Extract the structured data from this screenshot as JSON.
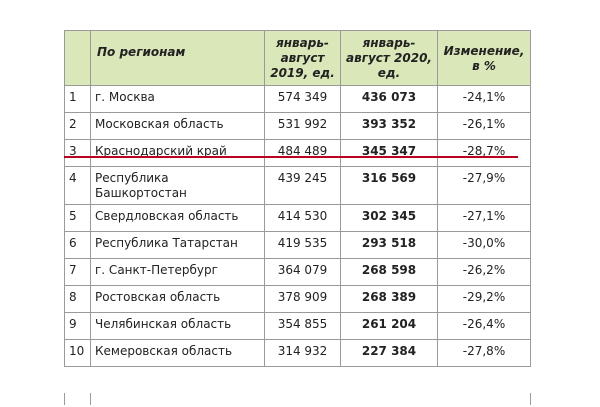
{
  "table": {
    "header": [
      "",
      "По регионам",
      "январь-\nавгуст\n2019, ед.",
      "январь-\nавгуст 2020,\nед.",
      "Изменение,\nв %"
    ],
    "rows": [
      [
        "1",
        "г. Москва",
        "574 349",
        "436 073",
        "-24,1%"
      ],
      [
        "2",
        "Московская область",
        "531 992",
        "393 352",
        "-26,1%"
      ],
      [
        "3",
        "Краснодарский край",
        "484 489",
        "345 347",
        "-28,7%"
      ],
      [
        "4",
        "Республика\nБашкортостан",
        "439 245",
        "316 569",
        "-27,9%"
      ],
      [
        "5",
        "Свердловская область",
        "414 530",
        "302 345",
        "-27,1%"
      ],
      [
        "6",
        "Республика Татарстан",
        "419 535",
        "293 518",
        "-30,0%"
      ],
      [
        "7",
        "г. Санкт-Петербург",
        "364 079",
        "268 598",
        "-26,2%"
      ],
      [
        "8",
        "Ростовская область",
        "378 909",
        "268 389",
        "-29,2%"
      ],
      [
        "9",
        "Челябинская область",
        "354 855",
        "261 204",
        "-26,4%"
      ],
      [
        "10",
        "Кемеровская область",
        "314 932",
        "227 384",
        "-27,8%"
      ]
    ]
  }
}
